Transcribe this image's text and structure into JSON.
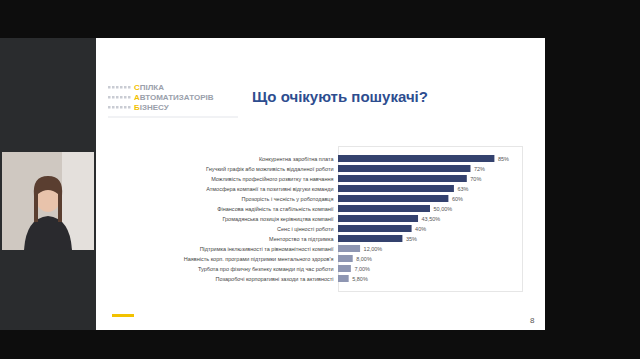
{
  "chart_data": {
    "type": "bar",
    "orientation": "horizontal",
    "title": "Що очікують пошукачі?",
    "categories": [
      "Конкурентна заробітна плата",
      "Гнучкий графік або можливість віддаленої роботи",
      "Можливість професійного розвитку та навчання",
      "Атмосфера компанії та позитивні відгуки команди",
      "Прозорість і чесність у роботодавця",
      "Фінансова надійність та стабільність компанії",
      "Громадянська позиція керівництва компанії",
      "Сенс і цінності роботи",
      "Менторство та підтримка",
      "Підтримка інклюзивності та рівноманітності компанії",
      "Наявність корп. програми підтримки ментального здоров'я",
      "Турбота про фізичну безпеку команди під час роботи",
      "Позаробочі корпоративні заходи та активності"
    ],
    "values": [
      85,
      72,
      70,
      63,
      60,
      50,
      43.5,
      40,
      35,
      12,
      8,
      7,
      5.8
    ],
    "value_labels": [
      "85%",
      "72%",
      "70%",
      "63%",
      "60%",
      "50,00%",
      "43,50%",
      "40%",
      "35%",
      "12,00%",
      "8,00%",
      "7,00%",
      "5,80%"
    ],
    "colors": [
      "#34426e",
      "#34426e",
      "#34426e",
      "#34426e",
      "#34426e",
      "#34426e",
      "#34426e",
      "#34426e",
      "#34426e",
      "#8e96b2",
      "#8e96b2",
      "#8e96b2",
      "#8e96b2"
    ],
    "xlim": [
      0,
      100
    ],
    "xticks": [],
    "tick_labels": "y",
    "data_labels": true,
    "grid": false
  },
  "slide": {
    "logo": [
      "СПІЛКА",
      "АВТОМАТИЗАТОРІВ",
      "БІЗНЕСУ"
    ],
    "page_number": "8"
  }
}
